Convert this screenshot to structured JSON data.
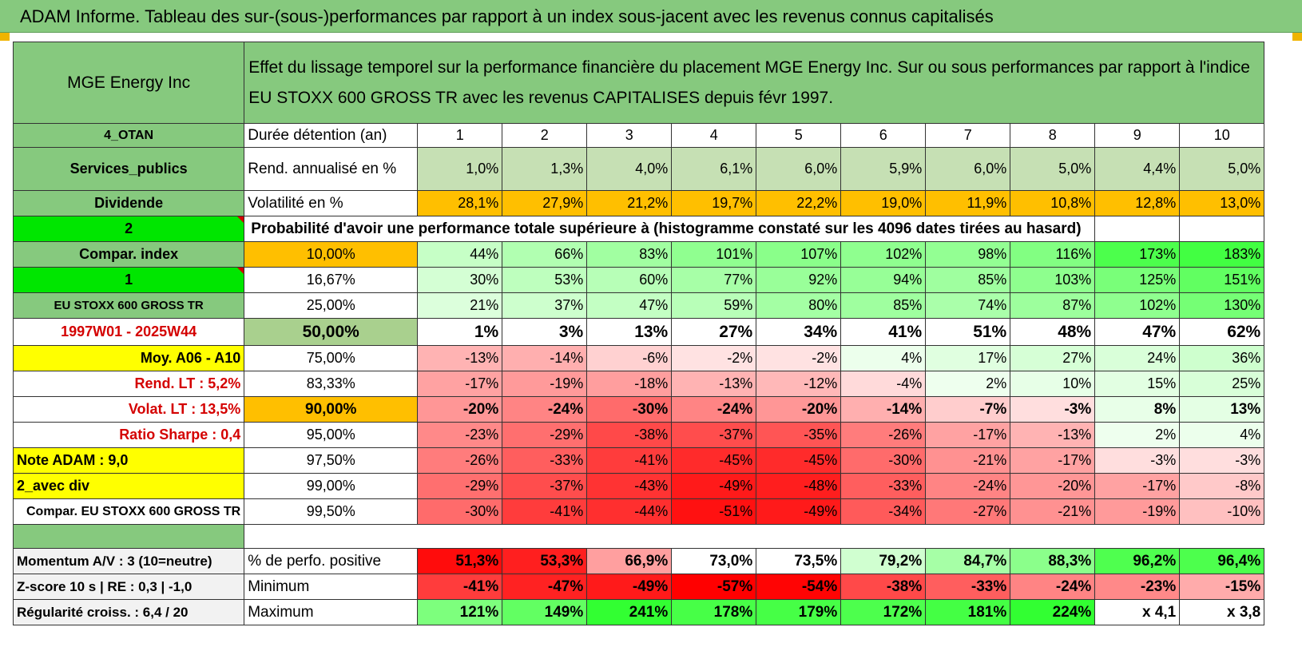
{
  "title": "ADAM Informe. Tableau des sur-(sous-)performances par rapport à un index sous-jacent avec les revenus connus capitalisés",
  "header": {
    "company": "MGE Energy Inc",
    "description": "Effet du lissage temporel sur la performance financière du placement MGE Energy Inc. Sur ou sous performances par rapport à l'indice EU STOXX 600 GROSS TR avec les revenus CAPITALISES depuis févr 1997."
  },
  "rows": {
    "duration": {
      "left": "4_OTAN",
      "label": "Durée détention (an)",
      "values": [
        "1",
        "2",
        "3",
        "4",
        "5",
        "6",
        "7",
        "8",
        "9",
        "10"
      ]
    },
    "return": {
      "left": "Services_publics",
      "label": "Rend. annualisé en %",
      "values": [
        "1,0%",
        "1,3%",
        "4,0%",
        "6,1%",
        "6,0%",
        "5,9%",
        "6,0%",
        "5,0%",
        "4,4%",
        "5,0%"
      ]
    },
    "volatility": {
      "left": "Dividende",
      "label": "Volatilité en %",
      "values": [
        "28,1%",
        "27,9%",
        "21,2%",
        "19,7%",
        "22,2%",
        "19,0%",
        "11,9%",
        "10,8%",
        "12,8%",
        "13,0%"
      ]
    },
    "prob_header": {
      "left": "2",
      "label": "Probabilité d'avoir une performance totale supérieure à (histogramme constaté sur les 4096 dates tirées au hasard)"
    }
  },
  "prob_rows": [
    {
      "left": "Compar. index",
      "pct": "10,00%",
      "values": [
        "44%",
        "66%",
        "83%",
        "101%",
        "107%",
        "102%",
        "98%",
        "116%",
        "173%",
        "183%"
      ]
    },
    {
      "left": "1",
      "pct": "16,67%",
      "values": [
        "30%",
        "53%",
        "60%",
        "77%",
        "92%",
        "94%",
        "85%",
        "103%",
        "125%",
        "151%"
      ]
    },
    {
      "left": "EU STOXX 600 GROSS TR",
      "pct": "25,00%",
      "values": [
        "21%",
        "37%",
        "47%",
        "59%",
        "80%",
        "85%",
        "74%",
        "87%",
        "102%",
        "130%"
      ]
    },
    {
      "left": "1997W01 - 2025W44",
      "pct": "50,00%",
      "values": [
        "1%",
        "3%",
        "13%",
        "27%",
        "34%",
        "41%",
        "51%",
        "48%",
        "47%",
        "62%"
      ]
    },
    {
      "left": "Moy. A06 - A10",
      "pct": "75,00%",
      "values": [
        "-13%",
        "-14%",
        "-6%",
        "-2%",
        "-2%",
        "4%",
        "17%",
        "27%",
        "24%",
        "36%"
      ]
    },
    {
      "left": "Rend. LT :    5,2%",
      "pct": "83,33%",
      "values": [
        "-17%",
        "-19%",
        "-18%",
        "-13%",
        "-12%",
        "-4%",
        "2%",
        "10%",
        "15%",
        "25%"
      ]
    },
    {
      "left": "Volat. LT :    13,5%",
      "pct": "90,00%",
      "values": [
        "-20%",
        "-24%",
        "-30%",
        "-24%",
        "-20%",
        "-14%",
        "-7%",
        "-3%",
        "8%",
        "13%"
      ]
    },
    {
      "left": "Ratio Sharpe :     0,4",
      "pct": "95,00%",
      "values": [
        "-23%",
        "-29%",
        "-38%",
        "-37%",
        "-35%",
        "-26%",
        "-17%",
        "-13%",
        "2%",
        "4%"
      ]
    },
    {
      "left": "Note ADAM : 9,0",
      "pct": "97,50%",
      "values": [
        "-26%",
        "-33%",
        "-41%",
        "-45%",
        "-45%",
        "-30%",
        "-21%",
        "-17%",
        "-3%",
        "-3%"
      ]
    },
    {
      "left": "2_avec div",
      "pct": "99,00%",
      "values": [
        "-29%",
        "-37%",
        "-43%",
        "-49%",
        "-48%",
        "-33%",
        "-24%",
        "-20%",
        "-17%",
        "-8%"
      ]
    },
    {
      "left": "Compar. EU STOXX 600 GROSS TR",
      "pct": "99,50%",
      "values": [
        "-30%",
        "-41%",
        "-44%",
        "-51%",
        "-49%",
        "-34%",
        "-27%",
        "-21%",
        "-19%",
        "-10%"
      ]
    }
  ],
  "stats_rows": [
    {
      "left": "Momentum A/V : 3 (10=neutre)",
      "label": "% de perfo. positive",
      "values": [
        "51,3%",
        "53,3%",
        "66,9%",
        "73,0%",
        "73,5%",
        "79,2%",
        "84,7%",
        "88,3%",
        "96,2%",
        "96,4%"
      ]
    },
    {
      "left": "Z-score 10 s | RE : 0,3 | -1,0",
      "label": "Minimum",
      "values": [
        "-41%",
        "-47%",
        "-49%",
        "-57%",
        "-54%",
        "-38%",
        "-33%",
        "-24%",
        "-23%",
        "-15%"
      ]
    },
    {
      "left": "Régularité croiss. : 6,4 / 20",
      "label": "Maximum",
      "values": [
        "121%",
        "149%",
        "241%",
        "178%",
        "179%",
        "172%",
        "181%",
        "224%",
        "x 4,1",
        "x 3,8"
      ]
    }
  ],
  "colors": {
    "green_header": "#86c97e",
    "yellow": "#ffff00",
    "orange": "#ffbf00",
    "bright_green": "#00e600",
    "red_text": "#d40000"
  }
}
